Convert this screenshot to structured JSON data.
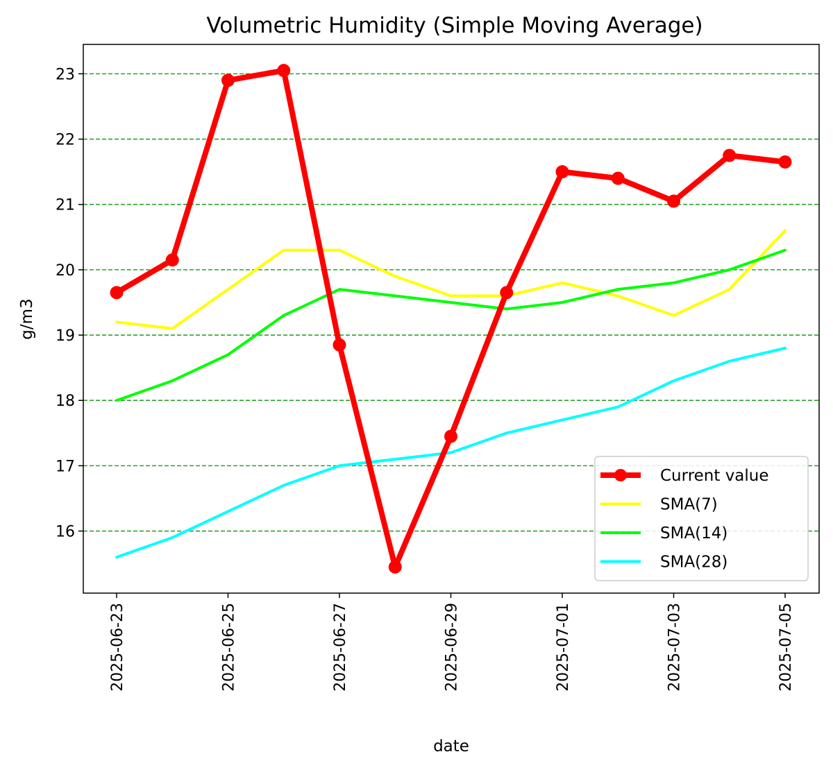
{
  "chart_data": {
    "type": "line",
    "title": "Volumetric Humidity (Simple Moving Average)",
    "xlabel": "date",
    "ylabel": "g/m3",
    "x": [
      "2025-06-23",
      "2025-06-24",
      "2025-06-25",
      "2025-06-26",
      "2025-06-27",
      "2025-06-28",
      "2025-06-29",
      "2025-06-30",
      "2025-07-01",
      "2025-07-02",
      "2025-07-03",
      "2025-07-04",
      "2025-07-05"
    ],
    "xticks": [
      "2025-06-23",
      "2025-06-25",
      "2025-06-27",
      "2025-06-29",
      "2025-07-01",
      "2025-07-03",
      "2025-07-05"
    ],
    "yticks": [
      16,
      17,
      18,
      19,
      20,
      21,
      22,
      23
    ],
    "ylim": [
      15.05,
      23.45
    ],
    "grid": "horizontal dashed",
    "grid_color": "#2ca02c",
    "legend_position": "lower-right",
    "series": [
      {
        "name": "Current value",
        "color": "#ff0000",
        "marker": "circle",
        "values": [
          19.65,
          20.15,
          22.9,
          23.05,
          18.85,
          15.45,
          17.45,
          19.65,
          21.5,
          21.4,
          21.05,
          21.75,
          21.65
        ]
      },
      {
        "name": "SMA(7)",
        "color": "#ffff00",
        "values": [
          19.2,
          19.1,
          19.7,
          20.3,
          20.3,
          19.9,
          19.6,
          19.6,
          19.8,
          19.6,
          19.3,
          19.7,
          20.6
        ]
      },
      {
        "name": "SMA(14)",
        "color": "#00ff00",
        "values": [
          18.0,
          18.3,
          18.7,
          19.3,
          19.7,
          19.6,
          19.5,
          19.4,
          19.5,
          19.7,
          19.8,
          20.0,
          20.3
        ]
      },
      {
        "name": "SMA(28)",
        "color": "#00ffff",
        "values": [
          15.6,
          15.9,
          16.3,
          16.7,
          17.0,
          17.1,
          17.2,
          17.5,
          17.7,
          17.9,
          18.3,
          18.6,
          18.8
        ]
      }
    ]
  }
}
